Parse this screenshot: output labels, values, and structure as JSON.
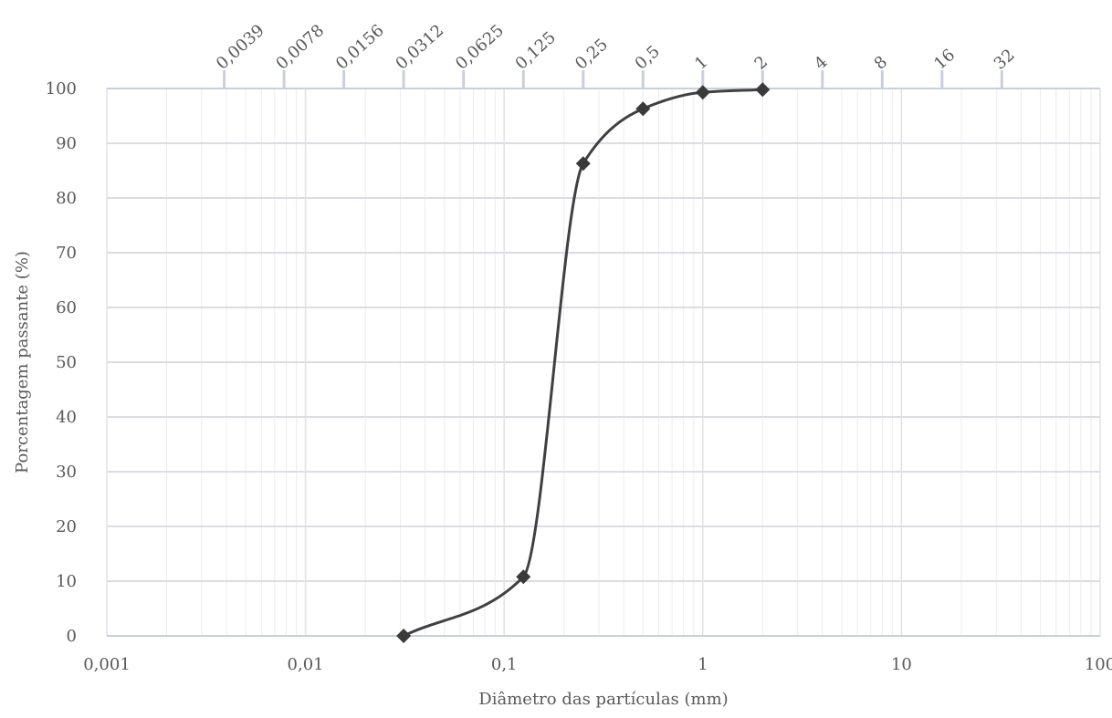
{
  "chart_data": {
    "type": "line",
    "x_label": "Diâmetro das partículas (mm)",
    "y_label": "Porcentagem passante (%)",
    "x": [
      0.0312,
      0.125,
      0.25,
      0.5,
      1,
      2
    ],
    "series": [
      {
        "color": "#404040",
        "values": [
          0,
          10.8,
          86.3,
          96.3,
          99.3,
          99.8
        ]
      }
    ],
    "xlog": true,
    "xlim": [
      0.001,
      100
    ],
    "xticks": [
      {
        "value": 0.001,
        "label": "0,001"
      },
      {
        "value": 0.01,
        "label": "0,01"
      },
      {
        "value": 0.1,
        "label": "0,1"
      },
      1,
      10,
      100
    ],
    "x2ticks": [
      {
        "value": 0.0039,
        "label": "0,0039"
      },
      {
        "value": 0.0078,
        "label": "0,0078"
      },
      {
        "value": 0.0156,
        "label": "0,0156"
      },
      {
        "value": 0.0312,
        "label": "0,0312"
      },
      {
        "value": 0.0625,
        "label": "0,0625"
      },
      {
        "value": 0.125,
        "label": "0,125"
      },
      {
        "value": 0.25,
        "label": "0,25"
      },
      {
        "value": 0.5,
        "label": "0,5"
      },
      1,
      2,
      4,
      8,
      16,
      32
    ],
    "ylim": [
      0,
      100
    ],
    "yticks": [
      0,
      10,
      20,
      30,
      40,
      50,
      60,
      70,
      80,
      90,
      100
    ],
    "grid": true,
    "minor_grid": true,
    "marker": "diamond",
    "smooth": true
  }
}
